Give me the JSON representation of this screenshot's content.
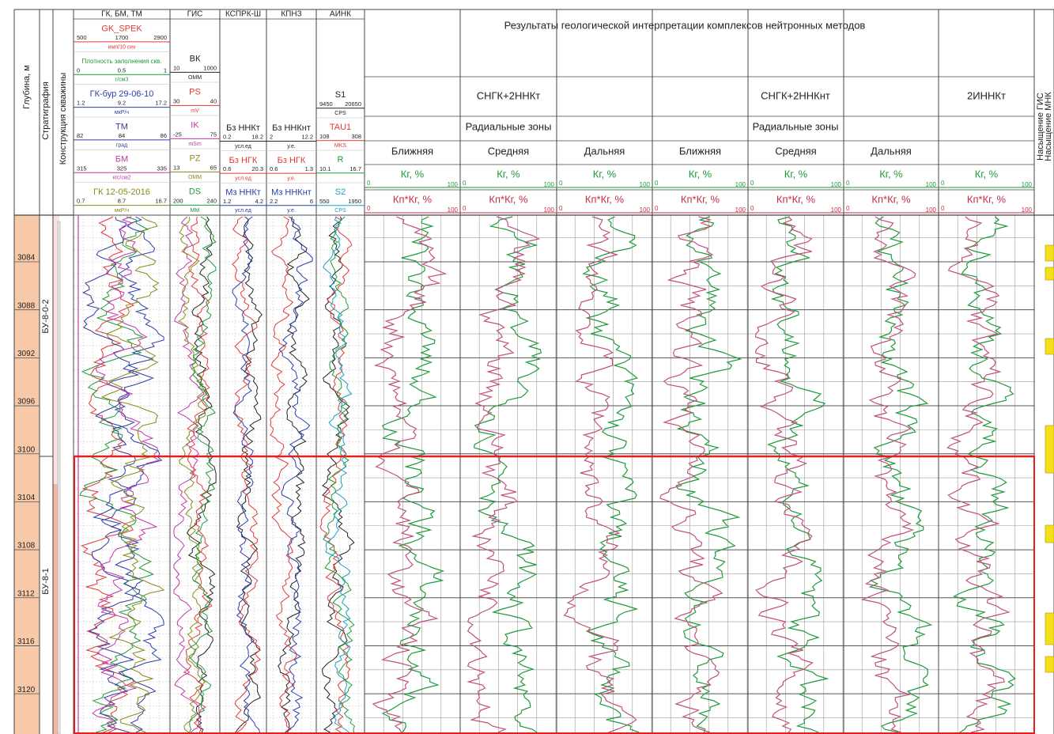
{
  "depth_track": {
    "title": "Глубина, м",
    "ticks": [
      3084,
      3088,
      3092,
      3096,
      3100,
      3104,
      3108,
      3112,
      3116,
      3120
    ]
  },
  "strat_track": {
    "title": "Стратиграфия",
    "units": [
      "БУ-8-0-2",
      "БУ-8-1"
    ]
  },
  "construction_track": {
    "title": "Конструкция скважины"
  },
  "tracks": [
    {
      "title": "ГК, БМ, ТМ",
      "items": [
        {
          "label": "GK_SPEK",
          "color": "#e03a3a",
          "scale": [
            "500",
            "1700",
            "2900"
          ],
          "unit": "имп/10 сек"
        },
        {
          "label": "Плотность заполнения скв.",
          "color": "#1f9a3a",
          "scale": [
            "0",
            "0.5",
            "1"
          ],
          "unit": "г/см3"
        },
        {
          "label": "ГК-бур 29-06-10",
          "color": "#2b3ea8",
          "scale": [
            "1.2",
            "9.2",
            "17.2"
          ],
          "unit": "мкР/ч"
        },
        {
          "label": "ТМ",
          "color": "#3a3aa0",
          "scale": [
            "82",
            "84",
            "86"
          ],
          "unit": "град"
        },
        {
          "label": "БМ",
          "color": "#c03aa8",
          "scale": [
            "315",
            "325",
            "335"
          ],
          "unit": "кгс/см2"
        },
        {
          "label": "ГК 12-05-2016",
          "color": "#8a8a1a",
          "scale": [
            "0.7",
            "8.7",
            "16.7"
          ],
          "unit": "мкР/ч"
        }
      ]
    },
    {
      "title": "ГИС",
      "items": [
        {
          "label": "ВК",
          "color": "#222222",
          "scale": [
            "10",
            "1000"
          ],
          "unit": "ОММ"
        },
        {
          "label": "PS",
          "color": "#e03a3a",
          "scale": [
            "30",
            "40"
          ],
          "unit": "mV"
        },
        {
          "label": "IK",
          "color": "#c03aa8",
          "scale": [
            "-25",
            "75"
          ],
          "unit": "mSm"
        },
        {
          "label": "PZ",
          "color": "#8a8a1a",
          "scale": [
            "13",
            "65"
          ],
          "unit": "OMM"
        },
        {
          "label": "DS",
          "color": "#1f9a3a",
          "scale": [
            "200",
            "240"
          ],
          "unit": "MM"
        }
      ]
    },
    {
      "title": "КСПРК-Ш",
      "items": [
        {
          "label": "Бз ННКт",
          "color": "#222222",
          "scale": [
            "0.2",
            "18.2"
          ],
          "unit": "усл.ед"
        },
        {
          "label": "Бз НГК",
          "color": "#e03a3a",
          "scale": [
            "0.6",
            "20.3"
          ],
          "unit": "усл.ед"
        },
        {
          "label": "Мз ННКт",
          "color": "#2b3ea8",
          "scale": [
            "1.2",
            "4.2"
          ],
          "unit": "усл.ед"
        }
      ]
    },
    {
      "title": "КПНЗ",
      "items": [
        {
          "label": "Бз ННКнт",
          "color": "#222222",
          "scale": [
            "2",
            "12.2"
          ],
          "unit": "у.е."
        },
        {
          "label": "Бз НГК",
          "color": "#e03a3a",
          "scale": [
            "0.6",
            "1.3"
          ],
          "unit": "у.е."
        },
        {
          "label": "Мз ННКнт",
          "color": "#2b3ea8",
          "scale": [
            "2.2",
            "6"
          ],
          "unit": "у.е."
        }
      ]
    },
    {
      "title": "АИНК",
      "items": [
        {
          "label": "S1",
          "color": "#222222",
          "scale": [
            "9450",
            "20650"
          ],
          "unit": "CPS"
        },
        {
          "label": "TAU1",
          "color": "#e03a3a",
          "scale": [
            "108",
            "308"
          ],
          "unit": "MKS"
        },
        {
          "label": "R",
          "color": "#1f9a3a",
          "scale": [
            "10.1",
            "16.7"
          ]
        },
        {
          "label": "S2",
          "color": "#1aa0c0",
          "scale": [
            "550",
            "1950"
          ],
          "unit": "CPS"
        }
      ]
    }
  ],
  "results": {
    "title": "Результаты геологической интерпретации комплексов нейтронных методов",
    "groups": [
      {
        "name": "СНГК+2ННКт",
        "subtitle": "Радиальные зоны",
        "columns": [
          {
            "zone": "Ближняя",
            "curves": [
              {
                "label": "Кг, %",
                "scale": [
                  "0",
                  "100"
                ]
              },
              {
                "label": "Кп*Кг, %",
                "scale": [
                  "0",
                  "100"
                ]
              }
            ]
          },
          {
            "zone": "Средняя",
            "curves": [
              {
                "label": "Кг, %",
                "scale": [
                  "0",
                  "100"
                ]
              },
              {
                "label": "Кп*Кг, %",
                "scale": [
                  "0",
                  "100"
                ]
              }
            ]
          },
          {
            "zone": "Дальняя",
            "curves": [
              {
                "label": "Кг, %",
                "scale": [
                  "0",
                  "100"
                ]
              },
              {
                "label": "Кп*Кг, %",
                "scale": [
                  "0",
                  "100"
                ]
              }
            ]
          }
        ]
      },
      {
        "name": "СНГК+2ННКнт",
        "subtitle": "Радиальные зоны",
        "columns": [
          {
            "zone": "Ближняя",
            "curves": [
              {
                "label": "Кг, %",
                "scale": [
                  "0",
                  "100"
                ]
              },
              {
                "label": "Кп*Кг, %",
                "scale": [
                  "0",
                  "100"
                ]
              }
            ]
          },
          {
            "zone": "Средняя",
            "curves": [
              {
                "label": "Кг, %",
                "scale": [
                  "0",
                  "100"
                ]
              },
              {
                "label": "Кп*Кг, %",
                "scale": [
                  "0",
                  "100"
                ]
              }
            ]
          },
          {
            "zone": "Дальняя",
            "curves": [
              {
                "label": "Кг, %",
                "scale": [
                  "0",
                  "100"
                ]
              },
              {
                "label": "Кп*Кг, %",
                "scale": [
                  "0",
                  "100"
                ]
              }
            ]
          }
        ]
      },
      {
        "name": "2ИННКт",
        "columns": [
          {
            "curves": [
              {
                "label": "Кг, %",
                "scale": [
                  "0",
                  "100"
                ]
              },
              {
                "label": "Кп*Кг, %",
                "scale": [
                  "0",
                  "100"
                ]
              }
            ]
          }
        ]
      }
    ]
  },
  "saturation_track": {
    "titles": [
      "Насыщение ГИС",
      "Насыщение МНК"
    ]
  }
}
